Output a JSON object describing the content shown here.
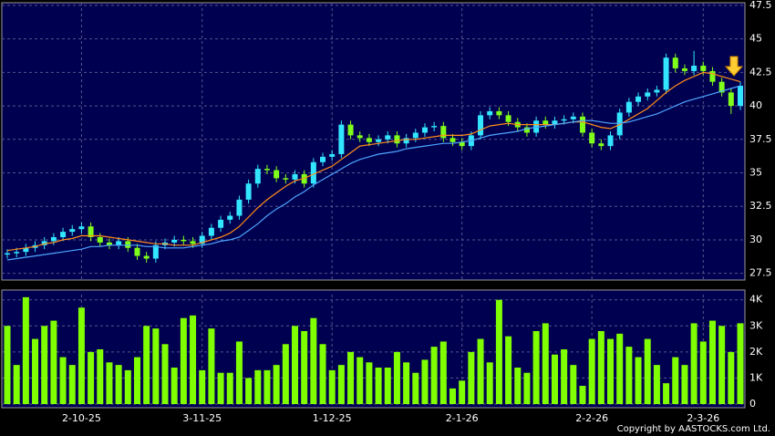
{
  "chart_data": [
    {
      "type": "candlestick",
      "categories": [
        null,
        null,
        null,
        null,
        null,
        null,
        null,
        null,
        "2-10-25",
        null,
        null,
        null,
        null,
        null,
        null,
        null,
        null,
        null,
        null,
        null,
        null,
        "3-11-25",
        null,
        null,
        null,
        null,
        null,
        null,
        null,
        null,
        null,
        null,
        null,
        null,
        null,
        "1-12-25",
        null,
        null,
        null,
        null,
        null,
        null,
        null,
        null,
        null,
        null,
        null,
        null,
        null,
        "2-1-26",
        null,
        null,
        null,
        null,
        null,
        null,
        null,
        null,
        null,
        null,
        null,
        null,
        null,
        "2-2-26",
        null,
        null,
        null,
        null,
        null,
        null,
        null,
        null,
        null,
        null,
        null,
        "2-3-26",
        null,
        null,
        null,
        null
      ],
      "open": [
        28.9,
        29.0,
        29.1,
        29.4,
        29.6,
        29.9,
        30.2,
        30.6,
        30.8,
        31.0,
        30.2,
        29.8,
        29.6,
        29.9,
        29.4,
        28.8,
        28.6,
        29.6,
        29.8,
        30.0,
        29.9,
        29.7,
        30.3,
        30.9,
        31.5,
        31.8,
        33.0,
        34.2,
        35.3,
        35.2,
        34.6,
        34.5,
        34.9,
        34.2,
        35.8,
        36.2,
        36.4,
        38.6,
        37.8,
        37.6,
        37.3,
        37.5,
        37.8,
        37.2,
        37.6,
        38.0,
        38.4,
        38.5,
        37.6,
        37.3,
        37.0,
        37.8,
        39.3,
        39.6,
        39.3,
        38.8,
        38.4,
        38.0,
        38.9,
        38.6,
        38.9,
        39.0,
        39.2,
        38.0,
        37.2,
        37.0,
        37.8,
        39.5,
        40.3,
        40.7,
        41.0,
        41.2,
        43.6,
        42.8,
        42.6,
        43.0,
        42.6,
        41.8,
        41.0,
        40.0
      ],
      "high": [
        29.3,
        29.4,
        29.7,
        29.9,
        30.2,
        30.5,
        30.9,
        31.1,
        31.3,
        31.3,
        30.5,
        30.1,
        30.2,
        30.2,
        29.7,
        29.1,
        29.9,
        30.1,
        30.3,
        30.3,
        30.2,
        30.6,
        31.2,
        31.8,
        32.1,
        33.3,
        34.5,
        35.6,
        35.6,
        35.5,
        34.9,
        35.2,
        35.2,
        36.1,
        36.5,
        36.7,
        38.9,
        38.9,
        38.1,
        37.9,
        37.8,
        38.1,
        38.1,
        37.9,
        38.3,
        38.7,
        38.8,
        38.8,
        37.9,
        37.6,
        38.1,
        39.6,
        39.9,
        39.9,
        39.6,
        39.1,
        38.7,
        39.2,
        39.2,
        39.2,
        39.3,
        39.5,
        39.5,
        38.3,
        37.5,
        38.1,
        39.8,
        40.6,
        41.0,
        41.3,
        41.5,
        43.9,
        43.9,
        43.1,
        44.1,
        43.3,
        42.9,
        42.1,
        41.3,
        41.8
      ],
      "low": [
        28.6,
        28.7,
        28.8,
        29.1,
        29.3,
        29.6,
        29.9,
        30.3,
        30.5,
        29.9,
        29.5,
        29.3,
        29.3,
        29.1,
        28.5,
        28.3,
        28.3,
        29.3,
        29.5,
        29.6,
        29.4,
        29.4,
        30.0,
        30.6,
        31.2,
        31.5,
        32.7,
        33.9,
        34.9,
        34.3,
        34.2,
        34.2,
        33.9,
        33.9,
        35.5,
        35.9,
        36.1,
        37.5,
        37.3,
        37.0,
        37.0,
        37.2,
        36.9,
        36.9,
        37.3,
        37.7,
        38.1,
        37.3,
        37.0,
        36.7,
        36.7,
        37.5,
        39.0,
        39.0,
        38.5,
        38.1,
        37.7,
        37.7,
        38.3,
        38.3,
        38.6,
        38.7,
        37.7,
        36.9,
        36.7,
        36.7,
        37.5,
        39.2,
        40.0,
        40.4,
        40.7,
        40.9,
        42.5,
        42.3,
        42.3,
        42.3,
        41.5,
        40.7,
        39.4,
        39.7
      ],
      "close": [
        29.0,
        29.1,
        29.4,
        29.6,
        29.9,
        30.2,
        30.6,
        30.8,
        31.0,
        30.2,
        29.8,
        29.6,
        29.9,
        29.4,
        28.8,
        28.6,
        29.6,
        29.8,
        30.0,
        29.9,
        29.7,
        30.3,
        30.9,
        31.5,
        31.8,
        33.0,
        34.2,
        35.3,
        35.2,
        34.6,
        34.5,
        34.9,
        34.2,
        35.8,
        36.2,
        36.4,
        38.6,
        37.8,
        37.6,
        37.3,
        37.5,
        37.8,
        37.2,
        37.6,
        38.0,
        38.4,
        38.5,
        37.6,
        37.3,
        37.0,
        37.8,
        39.3,
        39.6,
        39.3,
        38.8,
        38.4,
        38.0,
        38.9,
        38.6,
        38.9,
        39.0,
        39.2,
        38.0,
        37.2,
        37.0,
        37.8,
        39.5,
        40.3,
        40.7,
        41.0,
        41.2,
        43.6,
        42.8,
        42.6,
        43.0,
        42.6,
        41.8,
        41.0,
        40.0,
        41.5
      ],
      "up_color": "#33e6ff",
      "down_color": "#80ff1a",
      "series": [
        {
          "color": "#ff8c1a",
          "values": [
            29.2,
            29.3,
            29.4,
            29.5,
            29.7,
            29.8,
            30.0,
            30.1,
            30.3,
            30.3,
            30.3,
            30.2,
            30.1,
            30.0,
            29.9,
            29.8,
            29.7,
            29.7,
            29.6,
            29.6,
            29.6,
            29.8,
            30.0,
            30.2,
            30.5,
            31.0,
            31.7,
            32.4,
            33.0,
            33.5,
            34.0,
            34.4,
            34.6,
            34.9,
            35.2,
            35.5,
            36.0,
            36.5,
            37.0,
            37.1,
            37.2,
            37.3,
            37.4,
            37.5,
            37.5,
            37.6,
            37.7,
            37.8,
            37.8,
            37.8,
            37.9,
            38.2,
            38.5,
            38.6,
            38.7,
            38.6,
            38.6,
            38.6,
            38.6,
            38.6,
            38.7,
            38.8,
            38.8,
            38.6,
            38.4,
            38.3,
            38.6,
            39.0,
            39.4,
            39.8,
            40.4,
            41.0,
            41.5,
            41.9,
            42.2,
            42.5,
            42.4,
            42.2,
            42.0,
            41.8
          ]
        },
        {
          "color": "#4da6ff",
          "values": [
            28.5,
            28.6,
            28.7,
            28.8,
            28.9,
            29.0,
            29.1,
            29.2,
            29.3,
            29.5,
            29.5,
            29.6,
            29.6,
            29.6,
            29.6,
            29.5,
            29.5,
            29.4,
            29.4,
            29.4,
            29.5,
            29.6,
            29.7,
            29.9,
            30.0,
            30.2,
            30.7,
            31.2,
            31.8,
            32.3,
            32.7,
            33.2,
            33.6,
            34.1,
            34.5,
            34.9,
            35.3,
            35.7,
            36.0,
            36.2,
            36.4,
            36.5,
            36.6,
            36.8,
            36.9,
            37.0,
            37.1,
            37.2,
            37.2,
            37.3,
            37.4,
            37.6,
            37.8,
            37.9,
            38.0,
            38.1,
            38.3,
            38.4,
            38.5,
            38.6,
            38.7,
            38.8,
            38.9,
            38.9,
            38.8,
            38.7,
            38.7,
            38.8,
            39.0,
            39.2,
            39.4,
            39.7,
            40.0,
            40.3,
            40.5,
            40.7,
            40.9,
            41.1,
            41.3,
            41.5
          ]
        }
      ],
      "ylim": [
        27.0,
        47.7
      ],
      "yticks": [
        27.5,
        30,
        32.5,
        35,
        37.5,
        40,
        42.5,
        45,
        47.5
      ],
      "grid": true
    },
    {
      "type": "bar",
      "color": "#7fff00",
      "values": [
        3000,
        1500,
        4100,
        2500,
        3000,
        3200,
        1800,
        1500,
        3700,
        2000,
        2100,
        1600,
        1500,
        1300,
        1800,
        3000,
        2900,
        2300,
        1400,
        3300,
        3400,
        1300,
        2900,
        1200,
        1200,
        2400,
        1000,
        1300,
        1300,
        1500,
        2300,
        3000,
        2800,
        3300,
        2300,
        1300,
        1500,
        2000,
        1800,
        1600,
        1400,
        1400,
        2000,
        1600,
        1200,
        1700,
        2200,
        2400,
        600,
        900,
        2000,
        2500,
        1600,
        4000,
        2600,
        1400,
        1200,
        2800,
        3100,
        1900,
        2100,
        1500,
        700,
        2500,
        2800,
        2500,
        2700,
        2200,
        1800,
        2500,
        1500,
        800,
        1800,
        1500,
        3100,
        2400,
        3200,
        3000,
        2000,
        3100
      ],
      "ylim": [
        0,
        4200
      ],
      "yticks": [
        0,
        {
          "value": 1000,
          "label": "1K"
        },
        {
          "value": 2000,
          "label": "2K"
        },
        {
          "value": 3000,
          "label": "3K"
        },
        {
          "value": 4000,
          "label": "4K"
        }
      ],
      "grid": true
    }
  ],
  "footer": "Copyright by AASTOCKS.com Ltd."
}
